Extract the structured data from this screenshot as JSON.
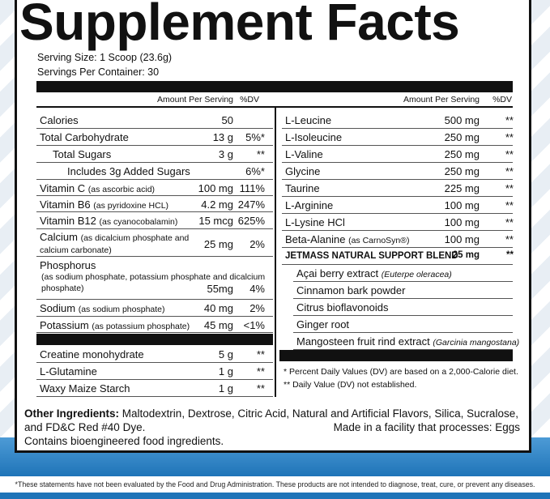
{
  "header": {
    "title": "Supplement Facts",
    "serving_size": "Serving Size: 1 Scoop (23.6g)",
    "servings_per_container": "Servings Per Container: 30"
  },
  "left": {
    "amount_header": "Amount Per Serving",
    "dv_header": "%DV",
    "nutrients": [
      {
        "name": "Calories",
        "amount": "50"
      },
      {
        "name": "Total Carbohydrate",
        "amount": "13 g",
        "dv": "5%*"
      },
      {
        "name": "Total Sugars",
        "amount": "3 g",
        "dv": "**"
      },
      {
        "name": "Includes 3g Added Sugars",
        "dv": "6%*"
      },
      {
        "name": "Vitamin C",
        "note": "(as ascorbic acid)",
        "amount": "100 mg",
        "dv": "111%"
      },
      {
        "name": "Vitamin B6",
        "note": "(as pyridoxine HCL)",
        "amount": "4.2 mg",
        "dv": "247%"
      },
      {
        "name": "Vitamin B12",
        "note": "(as cyanocobalamin)",
        "amount": "15 mcg",
        "dv": "625%"
      },
      {
        "name": "Calcium",
        "note": "(as dicalcium phosphate and calcium carbonate)",
        "amount": "25 mg",
        "dv": "2%"
      },
      {
        "name": "Phosphorus",
        "note": "(as sodium phosphate, potassium phosphate and dicalcium phosphate)",
        "amount": "55mg",
        "dv": "4%"
      },
      {
        "name": "Sodium",
        "note": "(as sodium phosphate)",
        "amount": "40 mg",
        "dv": "2%"
      },
      {
        "name": "Potassium",
        "note": "(as potassium phosphate)",
        "amount": "45 mg",
        "dv": "<1%"
      }
    ],
    "others": [
      {
        "name": "Creatine monohydrate",
        "amount": "5 g",
        "dv": "**"
      },
      {
        "name": "L-Glutamine",
        "amount": "1 g",
        "dv": "**"
      },
      {
        "name": "Waxy Maize Starch",
        "amount": "1 g",
        "dv": "**"
      }
    ]
  },
  "right": {
    "amount_header": "Amount Per Serving",
    "dv_header": "%DV",
    "amino_acids": [
      {
        "name": "L-Leucine",
        "amount": "500 mg",
        "dv": "**"
      },
      {
        "name": "L-Isoleucine",
        "amount": "250 mg",
        "dv": "**"
      },
      {
        "name": "L-Valine",
        "amount": "250 mg",
        "dv": "**"
      },
      {
        "name": "Glycine",
        "amount": "250 mg",
        "dv": "**"
      },
      {
        "name": "Taurine",
        "amount": "225 mg",
        "dv": "**"
      },
      {
        "name": "L-Arginine",
        "amount": "100 mg",
        "dv": "**"
      },
      {
        "name": "L-Lysine HCl",
        "amount": "100 mg",
        "dv": "**"
      },
      {
        "name": "Beta-Alanine",
        "note": "(as CarnoSyn®)",
        "amount": "100 mg",
        "dv": "**"
      }
    ],
    "blend": {
      "name": "JETMASS NATURAL SUPPORT BLEND",
      "amount": "25 mg",
      "dv": "**",
      "ingredients": [
        {
          "name": "Açai berry extract",
          "note": "(Euterpe oleracea)"
        },
        {
          "name": "Cinnamon bark powder"
        },
        {
          "name": "Citrus bioflavonoids"
        },
        {
          "name": "Ginger root"
        },
        {
          "name": "Mangosteen fruit rind extract",
          "note": "(Garcinia mangostana)"
        }
      ]
    },
    "footnotes": [
      "* Percent Daily Values (DV) are based on a 2,000-Calorie diet.",
      "** Daily Value (DV) not established."
    ]
  },
  "other_ingredients": {
    "label": "Other Ingredients:",
    "text": "Maltodextrin, Dextrose, Citric Acid, Natural and Artificial Flavors, Silica, Sucralose, and FD&C Red #40 Dye.",
    "facility": "Made in a facility that processes: Eggs",
    "bioengineered": "Contains bioengineered food ingredients."
  },
  "disclaimer": "*These statements have not been evaluated by the Food and Drug Administration. These products are not intended to diagnose, treat, cure, or prevent any diseases."
}
